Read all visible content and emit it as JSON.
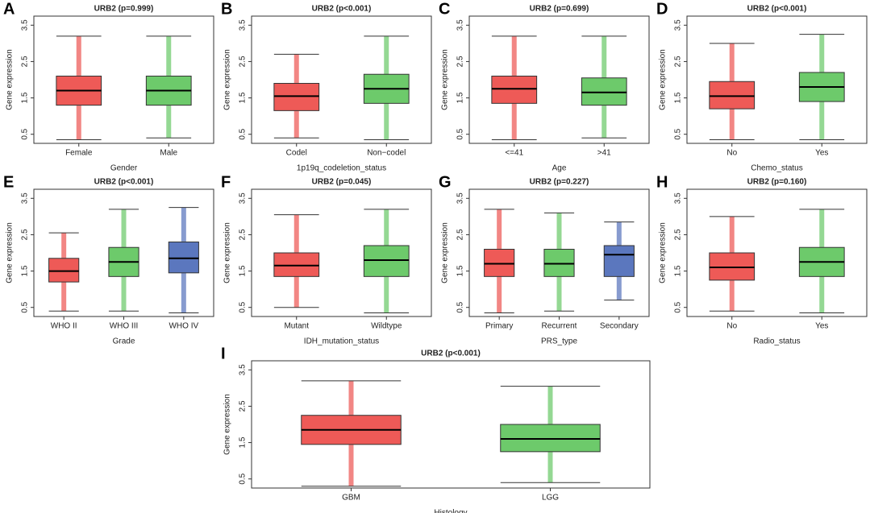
{
  "chart_data": [
    {
      "type": "box",
      "label": "A",
      "title": "URB2 (p=0.999)",
      "ylabel": "Gene expression",
      "xlabel": "Gender",
      "categories": [
        "Female",
        "Male"
      ],
      "colors": [
        "#e8231f",
        "#3cb83a"
      ],
      "values": [
        [
          0.35,
          1.3,
          1.7,
          2.1,
          3.2
        ],
        [
          0.4,
          1.3,
          1.7,
          2.1,
          3.2
        ]
      ],
      "ylim": [
        0.25,
        3.75
      ],
      "yticks": [
        0.5,
        1.5,
        2.5,
        3.5
      ]
    },
    {
      "type": "box",
      "label": "B",
      "title": "URB2 (p<0.001)",
      "ylabel": "Gene expression",
      "xlabel": "1p19q_codeletion_status",
      "categories": [
        "Codel",
        "Non−codel"
      ],
      "colors": [
        "#e8231f",
        "#3cb83a"
      ],
      "values": [
        [
          0.4,
          1.15,
          1.55,
          1.9,
          2.7
        ],
        [
          0.35,
          1.35,
          1.75,
          2.15,
          3.2
        ]
      ],
      "ylim": [
        0.25,
        3.75
      ],
      "yticks": [
        0.5,
        1.5,
        2.5,
        3.5
      ]
    },
    {
      "type": "box",
      "label": "C",
      "title": "URB2 (p=0.699)",
      "ylabel": "Gene expression",
      "xlabel": "Age",
      "categories": [
        "<=41",
        ">41"
      ],
      "colors": [
        "#e8231f",
        "#3cb83a"
      ],
      "values": [
        [
          0.35,
          1.35,
          1.75,
          2.1,
          3.2
        ],
        [
          0.4,
          1.3,
          1.65,
          2.05,
          3.2
        ]
      ],
      "ylim": [
        0.25,
        3.75
      ],
      "yticks": [
        0.5,
        1.5,
        2.5,
        3.5
      ]
    },
    {
      "type": "box",
      "label": "D",
      "title": "URB2 (p<0.001)",
      "ylabel": "Gene expression",
      "xlabel": "Chemo_status",
      "categories": [
        "No",
        "Yes"
      ],
      "colors": [
        "#e8231f",
        "#3cb83a"
      ],
      "values": [
        [
          0.35,
          1.2,
          1.55,
          1.95,
          3.0
        ],
        [
          0.35,
          1.4,
          1.8,
          2.2,
          3.25
        ]
      ],
      "ylim": [
        0.25,
        3.75
      ],
      "yticks": [
        0.5,
        1.5,
        2.5,
        3.5
      ]
    },
    {
      "type": "box",
      "label": "E",
      "title": "URB2 (p<0.001)",
      "ylabel": "Gene expression",
      "xlabel": "Grade",
      "categories": [
        "WHO II",
        "WHO III",
        "WHO IV"
      ],
      "colors": [
        "#e8231f",
        "#3cb83a",
        "#2449a8"
      ],
      "values": [
        [
          0.4,
          1.2,
          1.5,
          1.85,
          2.55
        ],
        [
          0.4,
          1.35,
          1.75,
          2.15,
          3.2
        ],
        [
          0.35,
          1.45,
          1.85,
          2.3,
          3.25
        ]
      ],
      "ylim": [
        0.25,
        3.75
      ],
      "yticks": [
        0.5,
        1.5,
        2.5,
        3.5
      ]
    },
    {
      "type": "box",
      "label": "F",
      "title": "URB2 (p=0.045)",
      "ylabel": "Gene expression",
      "xlabel": "IDH_mutation_status",
      "categories": [
        "Mutant",
        "Wildtype"
      ],
      "colors": [
        "#e8231f",
        "#3cb83a"
      ],
      "values": [
        [
          0.5,
          1.35,
          1.65,
          2.0,
          3.05
        ],
        [
          0.35,
          1.35,
          1.8,
          2.2,
          3.2
        ]
      ],
      "ylim": [
        0.25,
        3.75
      ],
      "yticks": [
        0.5,
        1.5,
        2.5,
        3.5
      ]
    },
    {
      "type": "box",
      "label": "G",
      "title": "URB2 (p=0.227)",
      "ylabel": "Gene expression",
      "xlabel": "PRS_type",
      "categories": [
        "Primary",
        "Recurrent",
        "Secondary"
      ],
      "colors": [
        "#e8231f",
        "#3cb83a",
        "#2449a8"
      ],
      "values": [
        [
          0.35,
          1.35,
          1.7,
          2.1,
          3.2
        ],
        [
          0.4,
          1.35,
          1.7,
          2.1,
          3.1
        ],
        [
          0.7,
          1.35,
          1.95,
          2.2,
          2.85
        ]
      ],
      "ylim": [
        0.25,
        3.75
      ],
      "yticks": [
        0.5,
        1.5,
        2.5,
        3.5
      ]
    },
    {
      "type": "box",
      "label": "H",
      "title": "URB2 (p=0.160)",
      "ylabel": "Gene expression",
      "xlabel": "Radio_status",
      "categories": [
        "No",
        "Yes"
      ],
      "colors": [
        "#e8231f",
        "#3cb83a"
      ],
      "values": [
        [
          0.4,
          1.25,
          1.6,
          2.0,
          3.0
        ],
        [
          0.35,
          1.35,
          1.75,
          2.15,
          3.2
        ]
      ],
      "ylim": [
        0.25,
        3.75
      ],
      "yticks": [
        0.5,
        1.5,
        2.5,
        3.5
      ]
    },
    {
      "type": "box",
      "label": "I",
      "title": "URB2 (p<0.001)",
      "ylabel": "Gene expression",
      "xlabel": "Histology",
      "categories": [
        "GBM",
        "LGG"
      ],
      "colors": [
        "#e8231f",
        "#3cb83a"
      ],
      "values": [
        [
          0.3,
          1.45,
          1.85,
          2.25,
          3.2
        ],
        [
          0.4,
          1.25,
          1.6,
          2.0,
          3.05
        ]
      ],
      "ylim": [
        0.25,
        3.75
      ],
      "yticks": [
        0.5,
        1.5,
        2.5,
        3.5
      ]
    }
  ]
}
